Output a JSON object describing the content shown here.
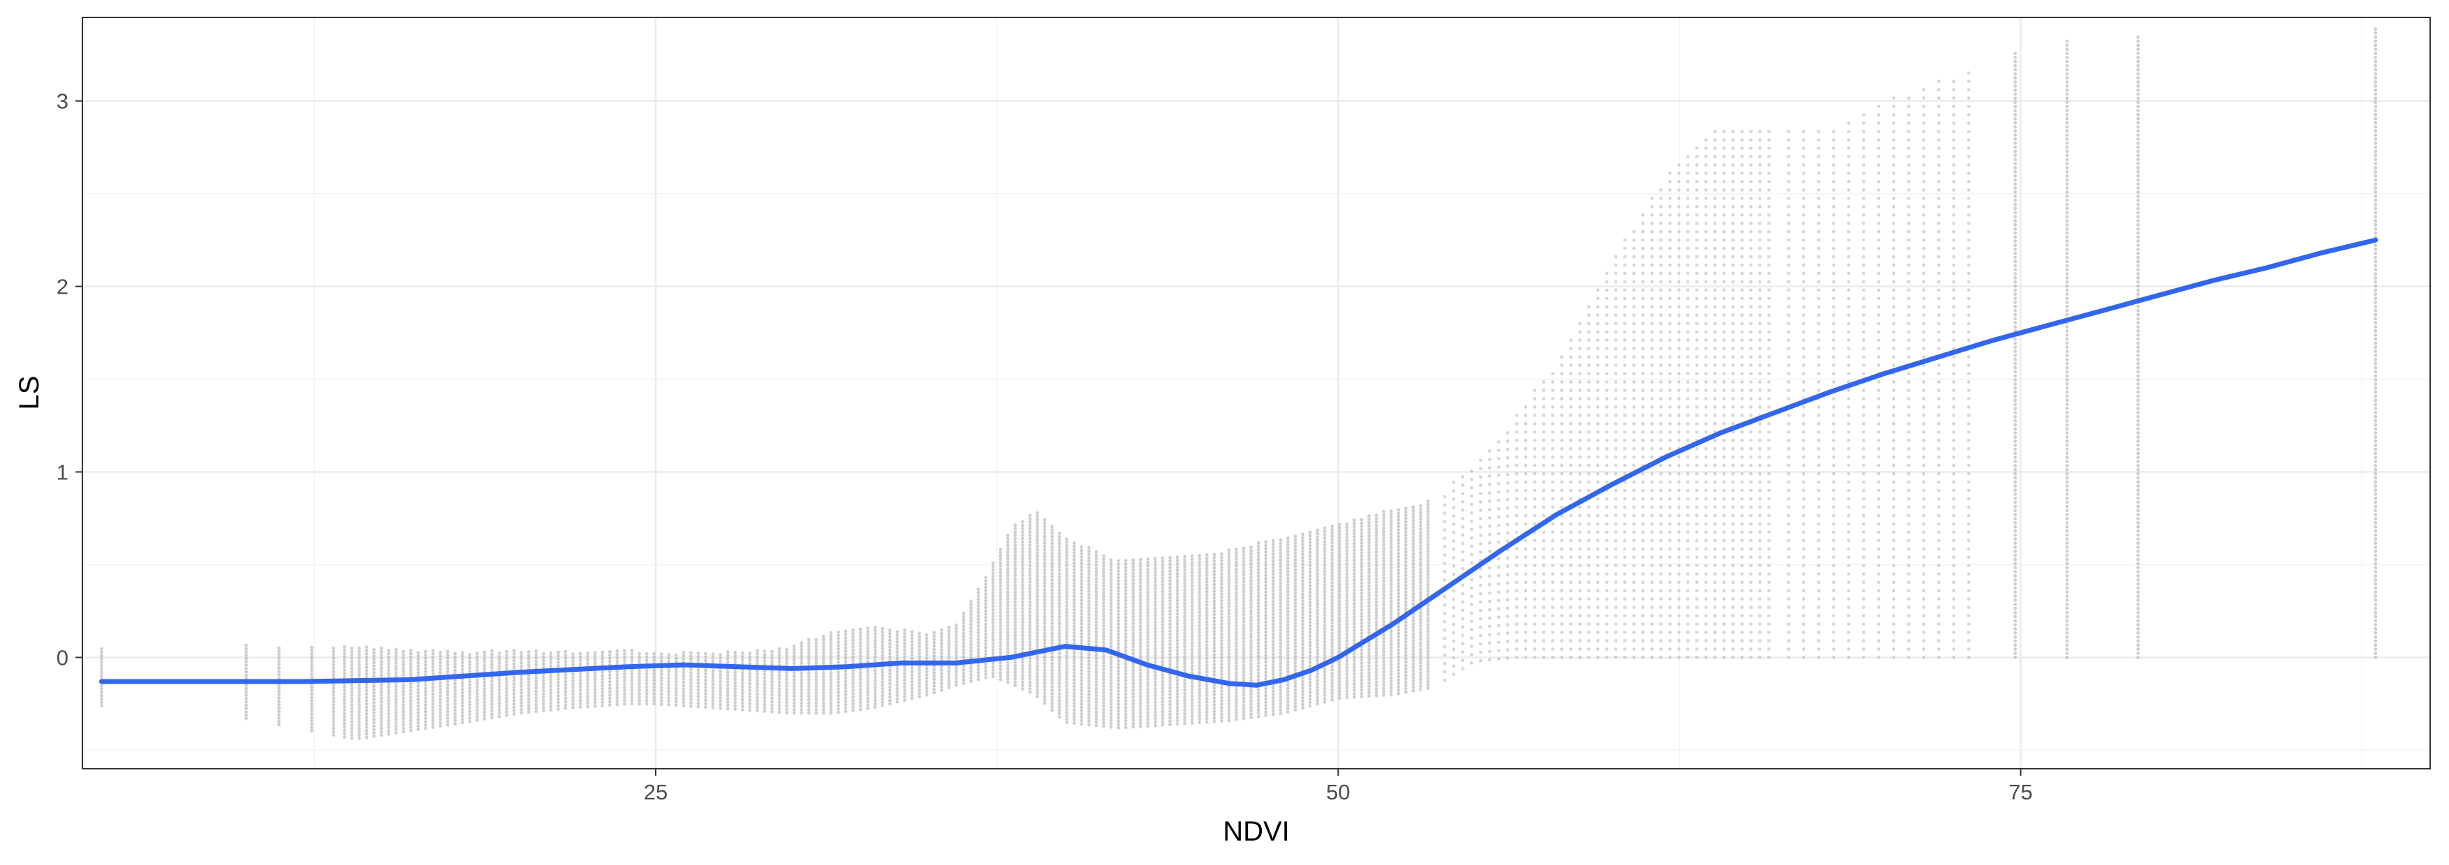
{
  "chart_data": {
    "type": "scatter",
    "title": "",
    "xlabel": "NDVI",
    "ylabel": "LS",
    "xlim": [
      4,
      90
    ],
    "ylim": [
      -0.6,
      3.45
    ],
    "x_ticks": [
      25,
      50,
      75
    ],
    "x_tick_labels": [
      "25",
      "50",
      "75"
    ],
    "y_ticks": [
      0,
      1,
      2,
      3
    ],
    "y_tick_labels": [
      "0",
      "1",
      "2",
      "3"
    ],
    "grid": true,
    "legend": "none",
    "colors": {
      "points": "#a6a6a6",
      "smooth_line": "#3366ee",
      "grid_major": "#ebebeb",
      "panel_border": "#333333"
    },
    "scatter_envelope": {
      "description_x": "NDVI",
      "x": [
        4.7,
        10,
        14,
        18,
        20,
        22,
        24,
        25,
        28,
        30,
        31.5,
        33,
        35,
        36,
        37.3,
        38,
        38.9,
        40,
        42,
        44,
        46,
        48,
        50,
        52,
        53.5,
        55,
        56.5,
        58,
        60,
        62,
        64,
        66,
        68,
        70,
        72,
        73.5,
        75,
        76.7,
        79.3,
        88
      ],
      "upper": [
        0.06,
        0.07,
        0.06,
        0.03,
        0.04,
        0.03,
        0.04,
        0.03,
        0.03,
        0.06,
        0.15,
        0.17,
        0.13,
        0.18,
        0.5,
        0.7,
        0.79,
        0.65,
        0.52,
        0.54,
        0.58,
        0.65,
        0.72,
        0.8,
        0.85,
        1.05,
        1.3,
        1.6,
        2.15,
        2.6,
        2.87,
        2.84,
        2.86,
        3.0,
        3.12,
        3.18,
        3.27,
        3.34,
        3.36,
        3.4
      ],
      "lower": [
        -0.26,
        -0.33,
        -0.44,
        -0.35,
        -0.3,
        -0.27,
        -0.25,
        -0.25,
        -0.28,
        -0.3,
        -0.3,
        -0.27,
        -0.2,
        -0.15,
        -0.1,
        -0.14,
        -0.2,
        -0.35,
        -0.38,
        -0.36,
        -0.34,
        -0.3,
        -0.22,
        -0.2,
        -0.16,
        -0.02,
        0.0,
        0.0,
        0.0,
        0.0,
        0.0,
        0.0,
        0.0,
        0.0,
        0.0,
        0.0,
        0.0,
        0.0,
        0.0,
        0.0
      ]
    },
    "series": [
      {
        "type": "smooth_line",
        "x": [
          4.7,
          8,
          12,
          16,
          20,
          24,
          26,
          28,
          30,
          32,
          34,
          36,
          38,
          40,
          41.5,
          43,
          44.5,
          46,
          47,
          48,
          49,
          50,
          52,
          54,
          56,
          58,
          60,
          62,
          64,
          66,
          68,
          70,
          72,
          74,
          76,
          78,
          80,
          82,
          84,
          86,
          88
        ],
        "y": [
          -0.13,
          -0.13,
          -0.13,
          -0.12,
          -0.08,
          -0.05,
          -0.04,
          -0.05,
          -0.06,
          -0.05,
          -0.03,
          -0.03,
          0.0,
          0.06,
          0.04,
          -0.04,
          -0.1,
          -0.14,
          -0.15,
          -0.12,
          -0.07,
          0.0,
          0.18,
          0.38,
          0.58,
          0.77,
          0.93,
          1.08,
          1.21,
          1.32,
          1.43,
          1.53,
          1.62,
          1.71,
          1.79,
          1.87,
          1.95,
          2.03,
          2.1,
          2.18,
          2.25
        ]
      }
    ]
  }
}
